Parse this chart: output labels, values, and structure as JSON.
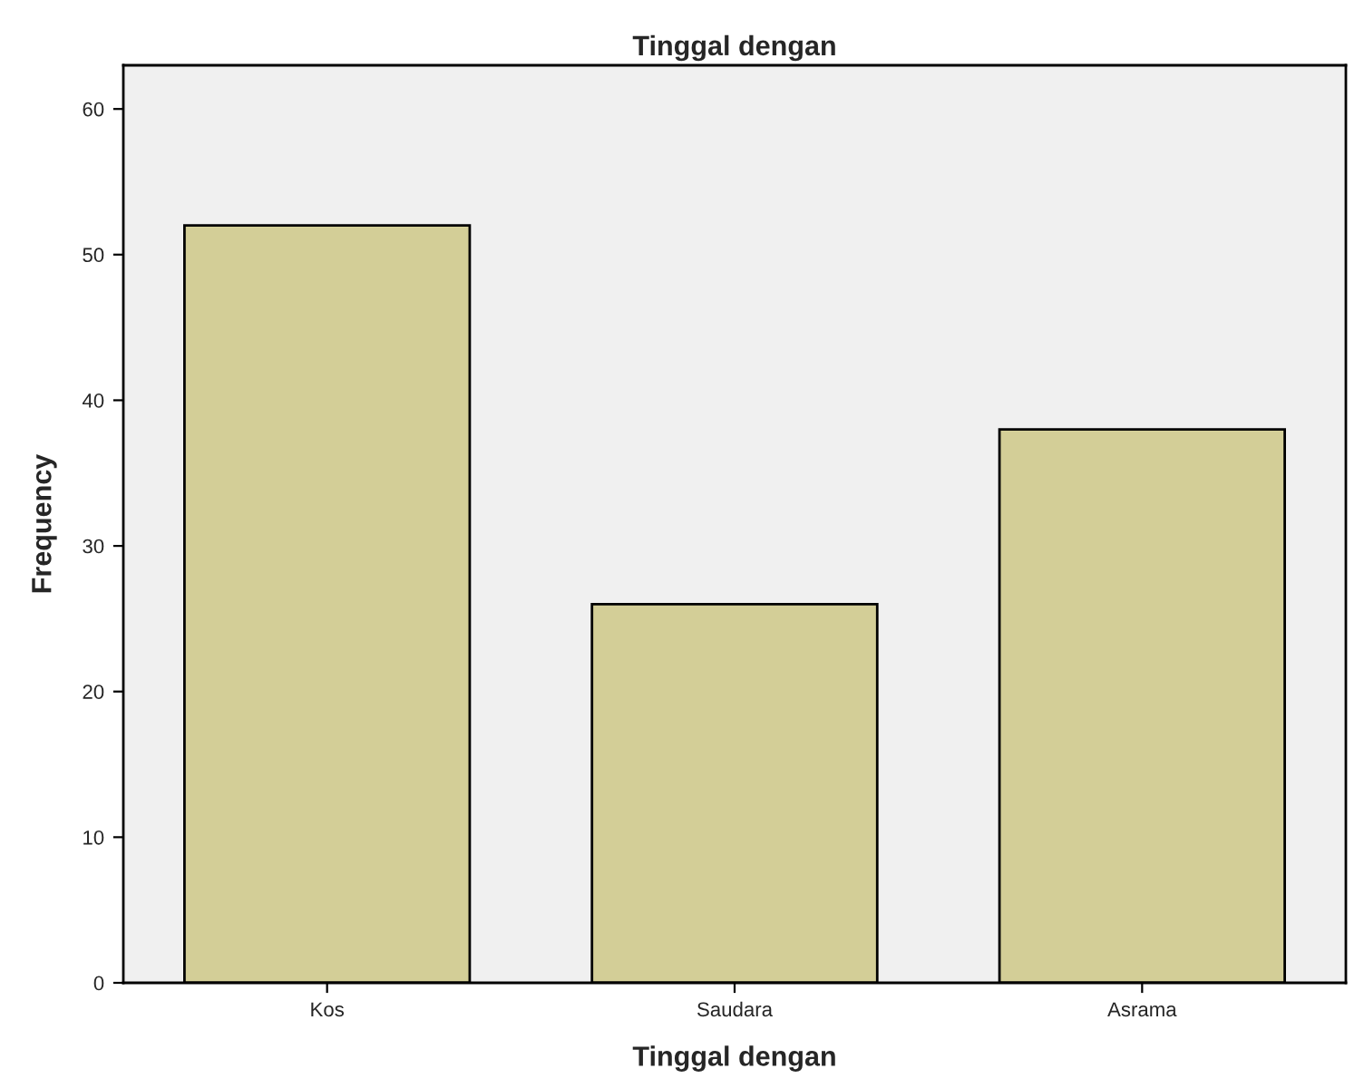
{
  "chart_data": {
    "type": "bar",
    "title": "Tinggal dengan",
    "xlabel": "Tinggal dengan",
    "ylabel": "Frequency",
    "categories": [
      "Kos",
      "Saudara",
      "Asrama"
    ],
    "values": [
      52,
      26,
      38
    ],
    "color": "#d3ce97",
    "ylim": [
      0,
      63
    ],
    "yticks": [
      0,
      10,
      20,
      30,
      40,
      50,
      60
    ],
    "grid": false,
    "legend": false
  }
}
